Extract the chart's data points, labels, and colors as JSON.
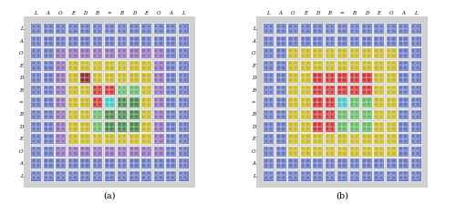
{
  "labels": [
    "L",
    "A",
    "O",
    "E",
    "D",
    "B",
    "=",
    "B",
    "D",
    "E",
    "O",
    "A",
    "L"
  ],
  "title_a": "(a)",
  "title_b": "(b)",
  "n": 13,
  "color_map_a": {
    "BL": "#6878c0",
    "PU": "#9070b8",
    "YE": "#c8b828",
    "RE": "#cc3838",
    "MA": "#883030",
    "GL": "#68b868",
    "GD": "#488848",
    "CY": "#48c8c8"
  },
  "color_map_b": {
    "BL": "#6878c0",
    "YE": "#c8b828",
    "RE": "#cc3838",
    "GR": "#68b868",
    "CY": "#48c8c8"
  },
  "figsize": [
    5.0,
    2.24
  ],
  "dpi": 100
}
